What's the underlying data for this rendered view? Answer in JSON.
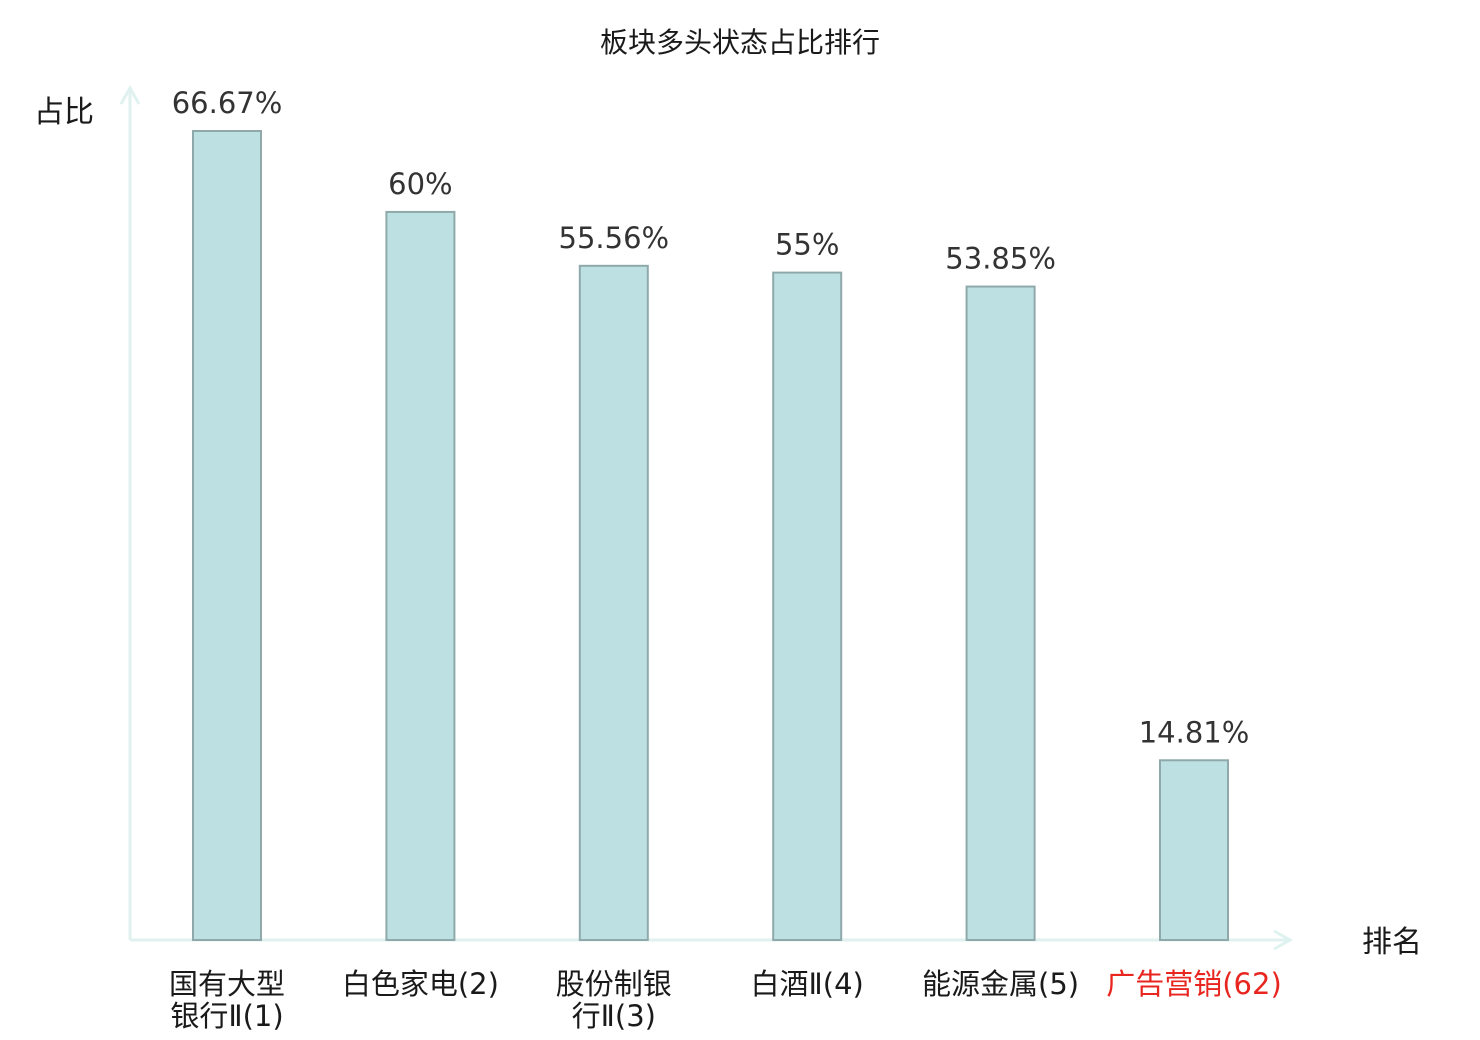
{
  "chart_data": {
    "type": "bar",
    "title": "板块多头状态占比排行",
    "xlabel": "排名",
    "ylabel": "占比",
    "ylim": [
      0,
      71
    ],
    "grid": false,
    "legend": "none",
    "categories": [
      {
        "lines": [
          "国有大型",
          "银行Ⅱ(1)"
        ],
        "value": 66.67,
        "label": "66.67%",
        "highlight": false
      },
      {
        "lines": [
          "白色家电(2)"
        ],
        "value": 60,
        "label": "60%",
        "highlight": false
      },
      {
        "lines": [
          "股份制银",
          "行Ⅱ(3)"
        ],
        "value": 55.56,
        "label": "55.56%",
        "highlight": false
      },
      {
        "lines": [
          "白酒Ⅱ(4)"
        ],
        "value": 55,
        "label": "55%",
        "highlight": false
      },
      {
        "lines": [
          "能源金属(5)"
        ],
        "value": 53.85,
        "label": "53.85%",
        "highlight": false
      },
      {
        "lines": [
          "广告营销(62)"
        ],
        "value": 14.81,
        "label": "14.81%",
        "highlight": true
      }
    ],
    "colors": {
      "bar_fill": "#bde1e3",
      "bar_stroke": "#8fa9aa",
      "axis": "#dff2ef",
      "label_normal": "#1a1a1a",
      "label_highlight": "#e8251f"
    }
  }
}
